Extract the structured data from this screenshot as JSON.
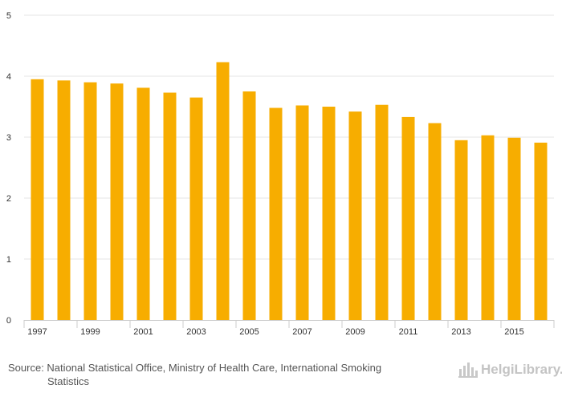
{
  "chart_data": {
    "type": "bar",
    "x": [
      1997,
      1998,
      1999,
      2000,
      2001,
      2002,
      2003,
      2004,
      2005,
      2006,
      2007,
      2008,
      2009,
      2010,
      2011,
      2012,
      2013,
      2014,
      2015,
      2016
    ],
    "x_tick_labels": [
      "1997",
      "1999",
      "2001",
      "2003",
      "2005",
      "2007",
      "2009",
      "2011",
      "2013",
      "2015"
    ],
    "values": [
      3.95,
      3.93,
      3.9,
      3.88,
      3.81,
      3.73,
      3.65,
      4.23,
      3.75,
      3.48,
      3.52,
      3.5,
      3.42,
      3.53,
      3.33,
      3.23,
      2.95,
      3.03,
      2.99,
      2.91
    ],
    "y_ticks": [
      0,
      1,
      2,
      3,
      4,
      5
    ],
    "ylim": [
      0,
      5
    ],
    "grid": true,
    "bar_color": "#f7ad00",
    "grid_color": "#e6e6e6"
  },
  "footer": {
    "source_line1": "Source: National Statistical Office, Ministry of Health Care, International Smoking",
    "source_line2": "Statistics",
    "brand": "HelgiLibrary."
  }
}
